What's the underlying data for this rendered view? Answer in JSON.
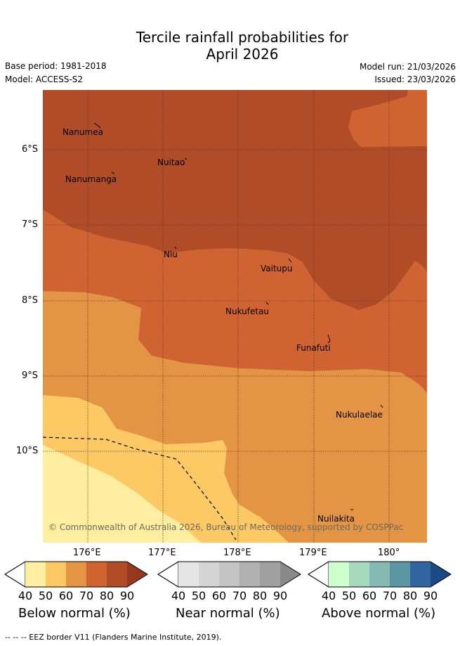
{
  "title": {
    "line1": "Tercile rainfall probabilities for",
    "line2": "April 2026"
  },
  "meta": {
    "base_period": "Base period: 1981-2018",
    "model": "Model: ACCESS-S2",
    "model_run": "Model run: 21/03/2026",
    "issued": "Issued: 23/03/2026"
  },
  "map": {
    "lat_labels": [
      "6°S",
      "7°S",
      "8°S",
      "9°S",
      "10°S"
    ],
    "lon_labels": [
      "176°E",
      "177°E",
      "178°E",
      "179°E",
      "180°"
    ],
    "places": [
      "Nanumea",
      "Nuitao",
      "Nanumanga",
      "Niu",
      "Vaitupu",
      "Nukufetau",
      "Funafuti",
      "Nukulaelae",
      "Nuilakita"
    ],
    "copyright": "© Commonwealth of Australia 2026, Bureau of Meteorology, supported by COSPPac"
  },
  "colorbars": {
    "below": {
      "title": "Below normal (%)",
      "ticks": [
        "40",
        "50",
        "60",
        "70",
        "80",
        "90"
      ],
      "colors": [
        "#ffeea0",
        "#fdc964",
        "#e39545",
        "#cf6432",
        "#b04d28",
        "#96381e"
      ]
    },
    "near": {
      "title": "Near normal (%)",
      "ticks": [
        "40",
        "50",
        "60",
        "70",
        "80",
        "90"
      ],
      "colors": [
        "#e5e5e5",
        "#d5d5d5",
        "#c4c4c4",
        "#b1b1b1",
        "#a0a0a0",
        "#8a8a8a"
      ]
    },
    "above": {
      "title": "Above normal (%)",
      "ticks": [
        "40",
        "50",
        "60",
        "70",
        "80",
        "90"
      ],
      "colors": [
        "#ccffcc",
        "#a6d9bd",
        "#86bab3",
        "#5c96a3",
        "#3366a0",
        "#1b4a85"
      ]
    }
  },
  "footer": "--  --  -- EEZ border V11 (Flanders Marine Institute, 2019)."
}
